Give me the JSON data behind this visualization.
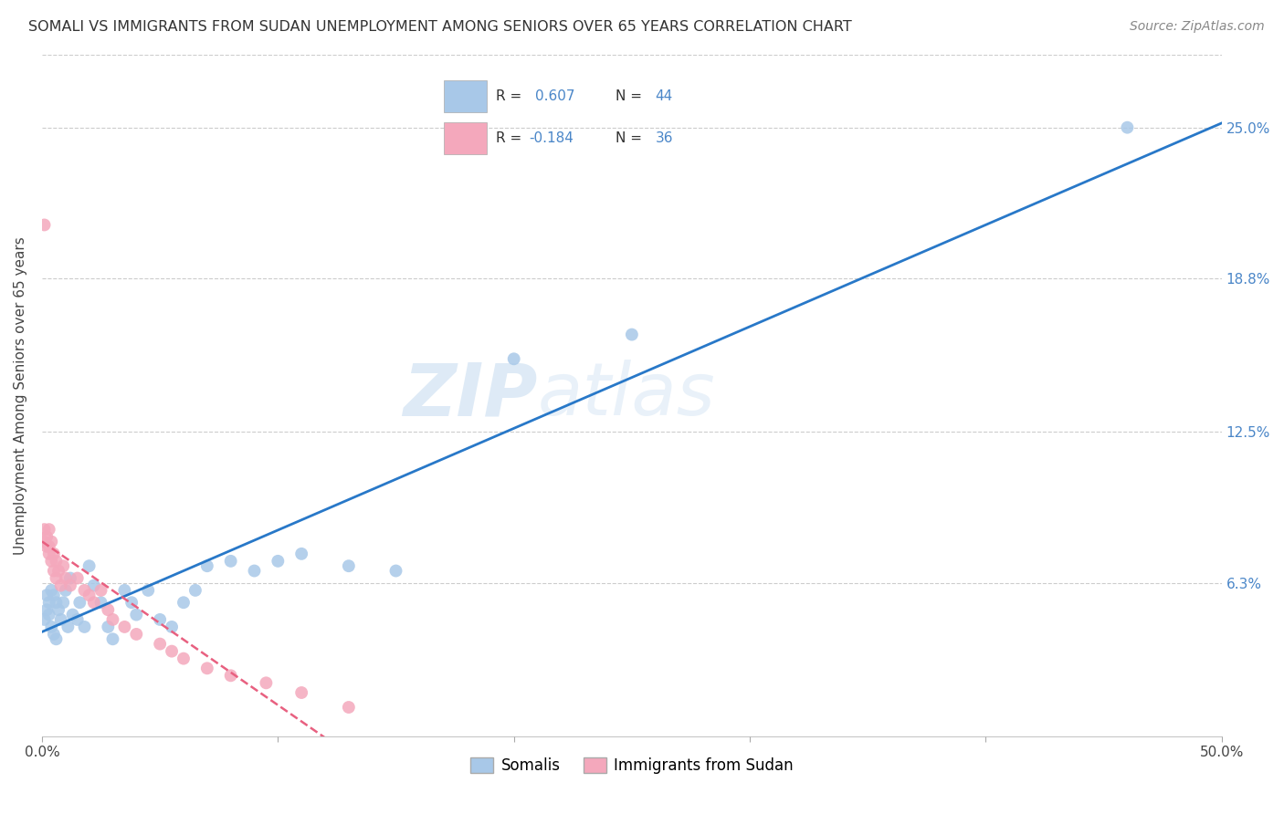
{
  "title": "SOMALI VS IMMIGRANTS FROM SUDAN UNEMPLOYMENT AMONG SENIORS OVER 65 YEARS CORRELATION CHART",
  "source": "Source: ZipAtlas.com",
  "ylabel": "Unemployment Among Seniors over 65 years",
  "xlim": [
    0.0,
    0.5
  ],
  "ylim": [
    0.0,
    0.28
  ],
  "yticks": [
    0.0,
    0.063,
    0.125,
    0.188,
    0.25
  ],
  "ytick_labels_right": [
    "",
    "6.3%",
    "12.5%",
    "18.8%",
    "25.0%"
  ],
  "somali_color": "#a8c8e8",
  "sudan_color": "#f4a8bc",
  "somali_line_color": "#2878c8",
  "sudan_line_color": "#e86080",
  "watermark_zip": "ZIP",
  "watermark_atlas": "atlas",
  "background_color": "#ffffff",
  "grid_color": "#cccccc",
  "somali_x": [
    0.001,
    0.002,
    0.002,
    0.003,
    0.003,
    0.004,
    0.004,
    0.005,
    0.005,
    0.006,
    0.006,
    0.007,
    0.008,
    0.009,
    0.01,
    0.011,
    0.012,
    0.013,
    0.015,
    0.016,
    0.018,
    0.02,
    0.022,
    0.025,
    0.028,
    0.03,
    0.035,
    0.038,
    0.04,
    0.045,
    0.05,
    0.055,
    0.06,
    0.065,
    0.07,
    0.08,
    0.09,
    0.1,
    0.11,
    0.13,
    0.15,
    0.2,
    0.25,
    0.46
  ],
  "somali_y": [
    0.048,
    0.052,
    0.058,
    0.05,
    0.055,
    0.045,
    0.06,
    0.042,
    0.058,
    0.04,
    0.055,
    0.052,
    0.048,
    0.055,
    0.06,
    0.045,
    0.065,
    0.05,
    0.048,
    0.055,
    0.045,
    0.07,
    0.062,
    0.055,
    0.045,
    0.04,
    0.06,
    0.055,
    0.05,
    0.06,
    0.048,
    0.045,
    0.055,
    0.06,
    0.07,
    0.072,
    0.068,
    0.072,
    0.075,
    0.07,
    0.068,
    0.155,
    0.165,
    0.25
  ],
  "sudan_x": [
    0.001,
    0.001,
    0.001,
    0.002,
    0.002,
    0.003,
    0.003,
    0.003,
    0.004,
    0.004,
    0.005,
    0.005,
    0.006,
    0.006,
    0.007,
    0.008,
    0.009,
    0.01,
    0.012,
    0.015,
    0.018,
    0.02,
    0.022,
    0.025,
    0.028,
    0.03,
    0.035,
    0.04,
    0.05,
    0.055,
    0.06,
    0.07,
    0.08,
    0.095,
    0.11,
    0.13
  ],
  "sudan_y": [
    0.21,
    0.085,
    0.08,
    0.078,
    0.082,
    0.075,
    0.085,
    0.078,
    0.072,
    0.08,
    0.068,
    0.075,
    0.065,
    0.072,
    0.068,
    0.062,
    0.07,
    0.065,
    0.062,
    0.065,
    0.06,
    0.058,
    0.055,
    0.06,
    0.052,
    0.048,
    0.045,
    0.042,
    0.038,
    0.035,
    0.032,
    0.028,
    0.025,
    0.022,
    0.018,
    0.012
  ],
  "marker_size": 100,
  "legend_r1": "R =  0.607",
  "legend_n1": "N = 44",
  "legend_r2": "R = -0.184",
  "legend_n2": "N = 36"
}
